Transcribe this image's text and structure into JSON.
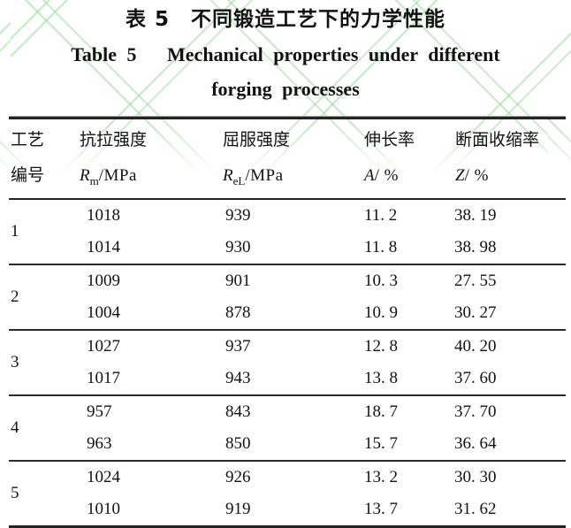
{
  "colors": {
    "text": "#121212",
    "rule": "#242424",
    "watermark_green": "#8fdd8f",
    "background": "#ffffff"
  },
  "captions": {
    "chinese": "表 5　不同锻造工艺下的力学性能",
    "english_line1": "Table 5   Mechanical properties under different",
    "english_line2": "forging processes"
  },
  "table": {
    "columns": [
      {
        "id": "process-no",
        "line1": "工艺",
        "line2": "编号",
        "symbol": "",
        "subscript": "",
        "unit": ""
      },
      {
        "id": "tensile-strength",
        "line1": "抗拉强度",
        "line2": "",
        "symbol": "R",
        "subscript": "m",
        "unit": "/MPa"
      },
      {
        "id": "yield-strength",
        "line1": "屈服强度",
        "line2": "",
        "symbol": "R",
        "subscript": "eL",
        "unit": "/MPa"
      },
      {
        "id": "elongation",
        "line1": "伸长率",
        "line2": "",
        "symbol": "A",
        "subscript": "",
        "unit": "/ %"
      },
      {
        "id": "reduction-of-area",
        "line1": "断面收缩率",
        "line2": "",
        "symbol": "Z",
        "subscript": "",
        "unit": "/ %"
      }
    ],
    "groups": [
      {
        "process_no": "1",
        "rows": [
          [
            "1018",
            "939",
            "11. 2",
            "38. 19"
          ],
          [
            "1014",
            "930",
            "11. 8",
            "38. 98"
          ]
        ]
      },
      {
        "process_no": "2",
        "rows": [
          [
            "1009",
            "901",
            "10. 3",
            "27. 55"
          ],
          [
            "1004",
            "878",
            "10. 9",
            "30. 27"
          ]
        ]
      },
      {
        "process_no": "3",
        "rows": [
          [
            "1027",
            "937",
            "12. 8",
            "40. 20"
          ],
          [
            "1017",
            "943",
            "13. 8",
            "37. 60"
          ]
        ]
      },
      {
        "process_no": "4",
        "rows": [
          [
            "957",
            "843",
            "18. 7",
            "37. 70"
          ],
          [
            "963",
            "850",
            "15. 7",
            "36. 64"
          ]
        ]
      },
      {
        "process_no": "5",
        "rows": [
          [
            "1024",
            "926",
            "13. 2",
            "30. 30"
          ],
          [
            "1010",
            "919",
            "13. 7",
            "31. 62"
          ]
        ]
      }
    ]
  }
}
